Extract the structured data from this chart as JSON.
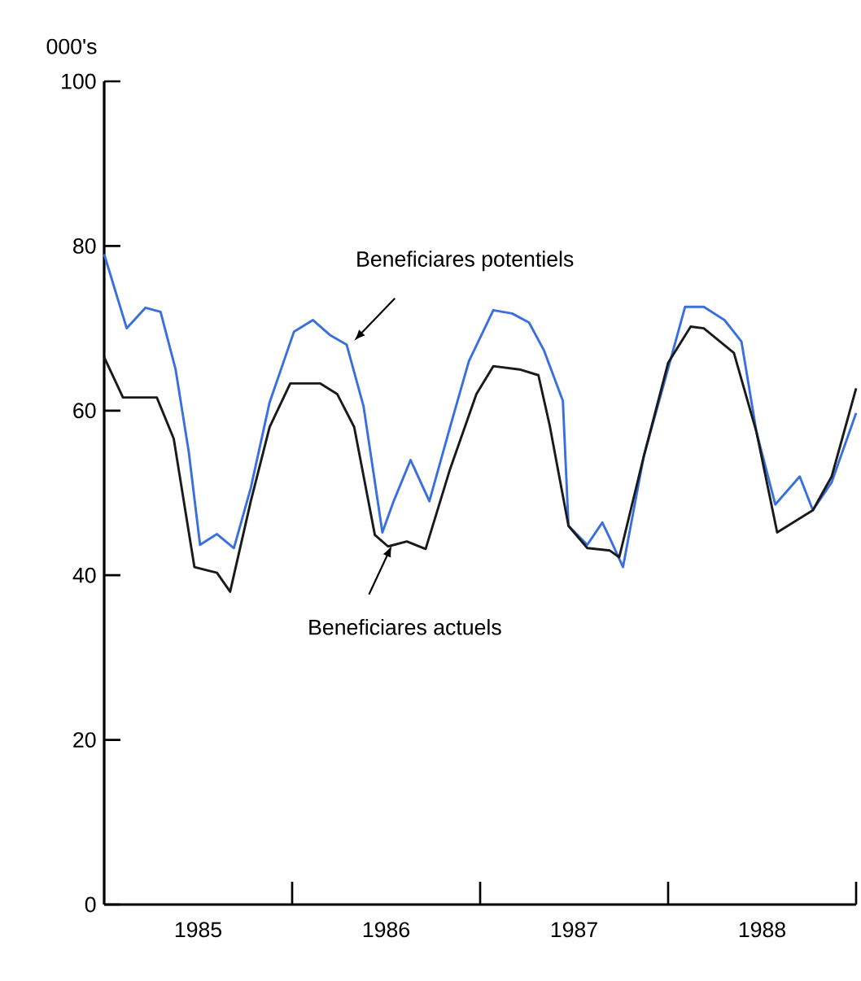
{
  "chart_data": {
    "type": "line",
    "ylabel": "000's",
    "xlim": [
      1985,
      1989
    ],
    "ylim": [
      0,
      100
    ],
    "xticks": [
      {
        "value": 1985.5,
        "label": "1985"
      },
      {
        "value": 1986.5,
        "label": "1986"
      },
      {
        "value": 1987.5,
        "label": "1987"
      },
      {
        "value": 1988.5,
        "label": "1988"
      },
      {
        "value": 1986,
        "label": null
      },
      {
        "value": 1987,
        "label": null
      },
      {
        "value": 1988,
        "label": null
      },
      {
        "value": 1989,
        "label": null
      }
    ],
    "yticks": [
      0,
      20,
      40,
      60,
      80,
      100
    ],
    "grid": false,
    "marker": "none",
    "line_style": "solid",
    "series": [
      {
        "color": "#3a6fe0",
        "x": [
          1985.0,
          1985.12,
          1985.22,
          1985.3,
          1985.38,
          1985.45,
          1985.51,
          1985.6,
          1985.69,
          1985.78,
          1985.88,
          1986.01,
          1986.11,
          1986.2,
          1986.29,
          1986.38,
          1986.48,
          1986.54,
          1986.63,
          1986.73,
          1986.84,
          1986.94,
          1987.07,
          1987.17,
          1987.26,
          1987.34,
          1987.44,
          1987.47,
          1987.57,
          1987.65,
          1987.69,
          1987.76,
          1987.87,
          1987.99,
          1988.09,
          1988.19,
          1988.3,
          1988.39,
          1988.47,
          1988.57,
          1988.7,
          1988.77,
          1988.87,
          1989.0
        ],
        "values": [
          79,
          70,
          72.5,
          72,
          65,
          55,
          43.7,
          45,
          43.3,
          50.6,
          61,
          69.6,
          71,
          69.2,
          68,
          60.5,
          45.2,
          49,
          54,
          49,
          58,
          66,
          72.2,
          71.8,
          70.7,
          67.3,
          61.2,
          46,
          43.7,
          46.4,
          44.5,
          41,
          54.4,
          64.3,
          72.6,
          72.6,
          71,
          68.4,
          57.4,
          48.6,
          52,
          47.9,
          51.3,
          59.7
        ]
      },
      {
        "color": "#1a1a1a",
        "x": [
          1985.0,
          1985.1,
          1985.28,
          1985.37,
          1985.48,
          1985.6,
          1985.67,
          1985.78,
          1985.88,
          1985.99,
          1986.15,
          1986.24,
          1986.33,
          1986.44,
          1986.51,
          1986.61,
          1986.71,
          1986.84,
          1986.98,
          1987.07,
          1987.21,
          1987.31,
          1987.37,
          1987.47,
          1987.57,
          1987.69,
          1987.74,
          1987.87,
          1988.0,
          1988.12,
          1988.19,
          1988.35,
          1988.47,
          1988.58,
          1988.77,
          1988.87,
          1989.0
        ],
        "values": [
          66.5,
          61.6,
          61.6,
          56.6,
          41,
          40.3,
          38,
          49,
          58,
          63.3,
          63.3,
          62,
          58,
          44.9,
          43.5,
          44.1,
          43.2,
          52.9,
          62,
          65.4,
          65,
          64.3,
          58.2,
          46,
          43.3,
          43,
          42.2,
          54.4,
          65.8,
          70.2,
          70,
          67,
          57.4,
          45.2,
          47.9,
          52,
          62.7
        ]
      }
    ],
    "annotations": [
      {
        "text": "Beneficiares potentiels",
        "x": 1986.33,
        "y": 68.5
      },
      {
        "text": "Beneficiares actuels",
        "x": 1986.53,
        "y": 43.6
      }
    ]
  }
}
